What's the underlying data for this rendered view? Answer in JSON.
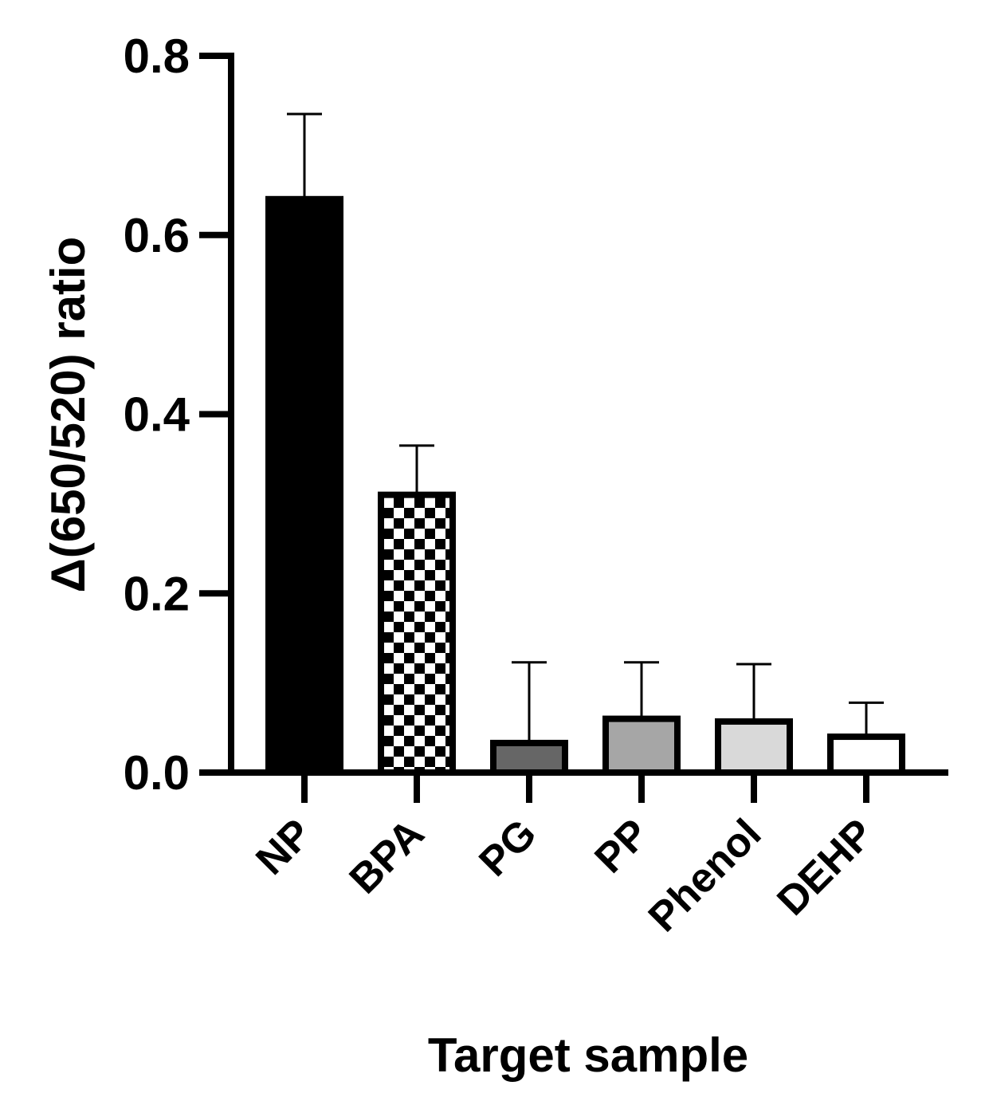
{
  "chart_data": {
    "type": "bar",
    "categories": [
      "NP",
      "BPA",
      "PG",
      "PP",
      "Phenol",
      "DEHP"
    ],
    "values": [
      0.64,
      0.31,
      0.033,
      0.06,
      0.057,
      0.04
    ],
    "error_upper": [
      0.735,
      0.365,
      0.123,
      0.123,
      0.121,
      0.078
    ],
    "xlabel": "Target sample",
    "ylabel": "Δ(650/520) ratio",
    "ylim": [
      0,
      0.8
    ],
    "yticks": [
      "0.0",
      "0.2",
      "0.4",
      "0.6",
      "0.8"
    ],
    "grid": false,
    "bar_fills": [
      "#000000",
      "checker",
      "#666666",
      "#a6a6a6",
      "#d9d9d9",
      "#ffffff"
    ]
  }
}
